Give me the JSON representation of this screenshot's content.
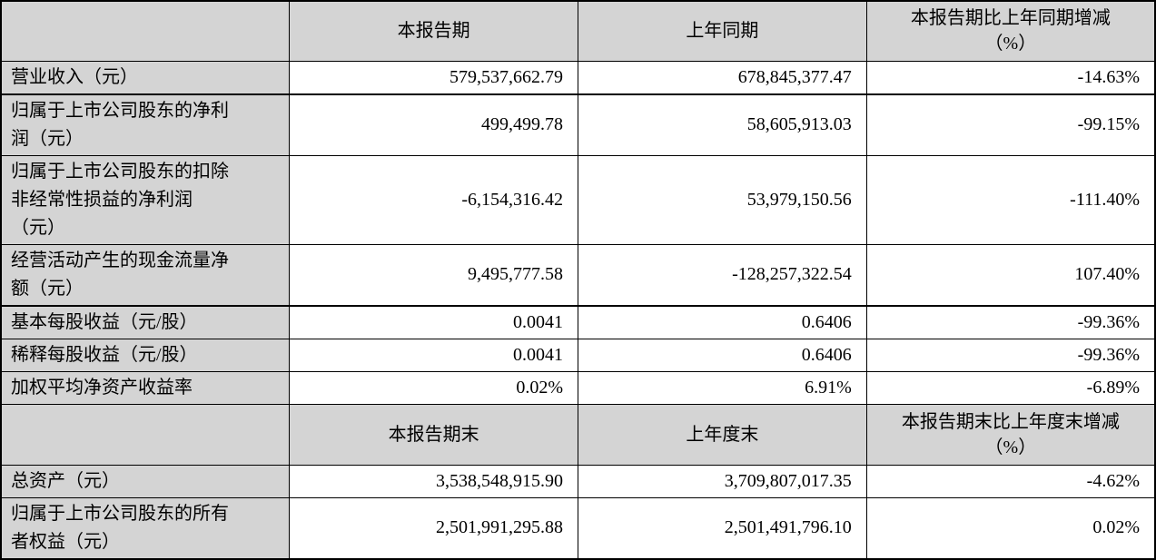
{
  "colors": {
    "header_bg": "#d4d4d4",
    "label_bg": "#d4d4d4",
    "cell_bg": "#ffffff",
    "border": "#000000",
    "text": "#000000"
  },
  "section_current": {
    "corner": "",
    "period_header": "本报告期",
    "prior_header": "上年同期",
    "change_header_line1": "本报告期比上年同期增减",
    "change_header_line2": "（%）",
    "rows": [
      {
        "label": "营业收入（元）",
        "current": "579,537,662.79",
        "prior": "678,845,377.47",
        "change": "-14.63%"
      },
      {
        "label": "归属于上市公司股东的净利润（元）",
        "current": "499,499.78",
        "prior": "58,605,913.03",
        "change": "-99.15%"
      },
      {
        "label": "归属于上市公司股东的扣除非经常性损益的净利润（元）",
        "current": "-6,154,316.42",
        "prior": "53,979,150.56",
        "change": "-111.40%"
      },
      {
        "label": "经营活动产生的现金流量净额（元）",
        "current": "9,495,777.58",
        "prior": "-128,257,322.54",
        "change": "107.40%"
      },
      {
        "label": "基本每股收益（元/股）",
        "current": "0.0041",
        "prior": "0.6406",
        "change": "-99.36%"
      },
      {
        "label": "稀释每股收益（元/股）",
        "current": "0.0041",
        "prior": "0.6406",
        "change": "-99.36%"
      },
      {
        "label": "加权平均净资产收益率",
        "current": "0.02%",
        "prior": "6.91%",
        "change": "-6.89%"
      }
    ]
  },
  "section_period_end": {
    "corner": "",
    "period_header": "本报告期末",
    "prior_header": "上年度末",
    "change_header_line1": "本报告期末比上年度末增减",
    "change_header_line2": "（%）",
    "rows": [
      {
        "label": "总资产（元）",
        "current": "3,538,548,915.90",
        "prior": "3,709,807,017.35",
        "change": "-4.62%"
      },
      {
        "label": "归属于上市公司股东的所有者权益（元）",
        "current": "2,501,991,295.88",
        "prior": "2,501,491,796.10",
        "change": "0.02%"
      }
    ]
  }
}
